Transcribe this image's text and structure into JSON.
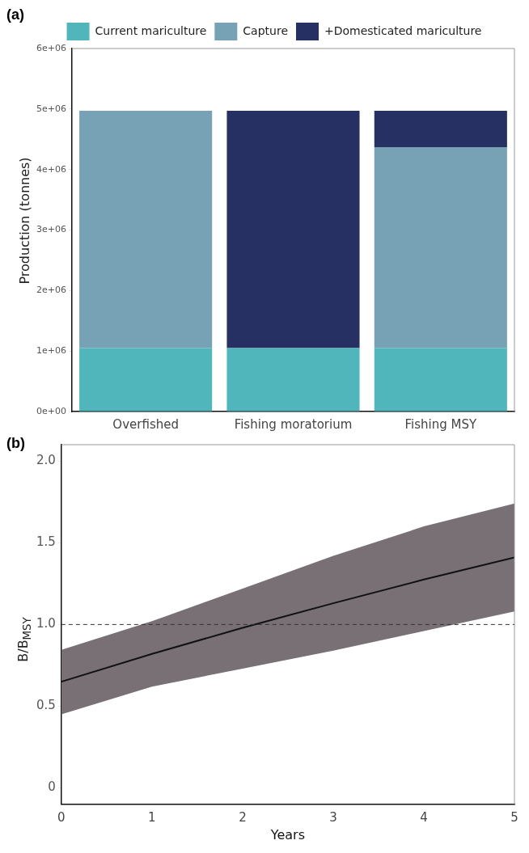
{
  "chart_data": [
    {
      "type": "bar",
      "title": "(a)",
      "ylabel": "Production (tonnes)",
      "categories": [
        "Overfished",
        "Fishing moratorium",
        "Fishing MSY"
      ],
      "stacked": true,
      "series": [
        {
          "name": "Current mariculture",
          "color": "#50b6bc",
          "values": [
            1050000,
            1050000,
            1050000
          ]
        },
        {
          "name": "Capture",
          "color": "#77a2b5",
          "values": [
            3920000,
            null,
            3320000
          ]
        },
        {
          "name": "+Domesticated mariculture",
          "color": "#273063",
          "values": [
            null,
            3920000,
            600000
          ]
        }
      ],
      "ylim": [
        0,
        6000000
      ],
      "yticks": [
        {
          "value": 0,
          "label": "0e+00"
        },
        {
          "value": 1000000,
          "label": "1e+06"
        },
        {
          "value": 2000000,
          "label": "2e+06"
        },
        {
          "value": 3000000,
          "label": "3e+06"
        },
        {
          "value": 4000000,
          "label": "4e+06"
        },
        {
          "value": 5000000,
          "label": "5e+06"
        },
        {
          "value": 6000000,
          "label": "6e+06"
        }
      ],
      "grid": false,
      "legend": "top"
    },
    {
      "type": "line",
      "title": "(b)",
      "xlabel": "Years",
      "ylabel": "B/B$_{MSY}$",
      "x": [
        0,
        1,
        2,
        3,
        4,
        5
      ],
      "marker": "none",
      "series": [
        {
          "color": "#111111",
          "values": [
            0.65,
            0.82,
            0.98,
            1.13,
            1.275,
            1.41
          ],
          "lower": [
            0.45,
            0.62,
            0.73,
            0.84,
            0.96,
            1.08
          ],
          "upper": [
            0.845,
            1.02,
            1.22,
            1.42,
            1.6,
            1.74
          ]
        }
      ],
      "xlim": [
        0,
        5
      ],
      "xticks": [
        0,
        1,
        2,
        3,
        4,
        5
      ],
      "ylim": [
        -0.1,
        2.1
      ],
      "yticks": [
        0,
        0.5,
        {
          "value": 1,
          "label": "1.0"
        },
        1.5,
        {
          "value": 2,
          "label": "2.0"
        }
      ],
      "ref_lines": [
        {
          "axis": "y",
          "value": 1.0,
          "line_style": "dashed",
          "color": "#333333"
        }
      ],
      "grid": false,
      "legend": false
    }
  ]
}
